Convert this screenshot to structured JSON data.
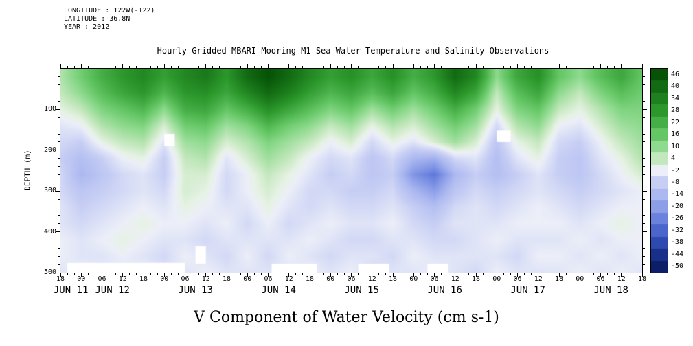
{
  "header": {
    "longitude": "LONGITUDE : 122W(-122)",
    "latitude": "LATITUDE : 36.8N",
    "year": "YEAR : 2012"
  },
  "title": "Hourly Gridded MBARI Mooring M1 Sea Water Temperature and Salinity Observations",
  "caption": "V Component of Water Velocity (cm s-1)",
  "y_axis": {
    "label": "DEPTH (m)",
    "ticks": [
      100,
      200,
      300,
      400,
      500
    ],
    "minor_step": 20,
    "range": [
      0,
      500
    ]
  },
  "x_axis": {
    "start": "JUN 11 18:00",
    "end": "JUN 18 18:00",
    "tick_step_hours": 6,
    "minor_step_hours": 2,
    "tick_labels": [
      "18",
      "00",
      "06",
      "12",
      "18",
      "00",
      "06",
      "12",
      "18",
      "00",
      "06",
      "12",
      "18",
      "00",
      "06",
      "12",
      "18",
      "00",
      "06",
      "12",
      "18",
      "00",
      "06",
      "12",
      "18",
      "00",
      "06",
      "12",
      "18"
    ],
    "day_labels": [
      {
        "h": 3,
        "label": "JUN 11"
      },
      {
        "h": 15,
        "label": "JUN 12"
      },
      {
        "h": 39,
        "label": "JUN 13"
      },
      {
        "h": 63,
        "label": "JUN 14"
      },
      {
        "h": 87,
        "label": "JUN 15"
      },
      {
        "h": 111,
        "label": "JUN 16"
      },
      {
        "h": 135,
        "label": "JUN 17"
      },
      {
        "h": 159,
        "label": "JUN 18"
      }
    ]
  },
  "colorbar": {
    "tick_values": [
      46,
      40,
      34,
      28,
      22,
      16,
      10,
      4,
      -2,
      -8,
      -14,
      -20,
      -26,
      -32,
      -38,
      -44,
      -50
    ],
    "band_step": 6
  },
  "chart_data": {
    "type": "heatmap",
    "value_units": "cm s-1",
    "value_range": [
      -50,
      46
    ],
    "x_unit": "hours since JUN 11 18:00",
    "x_step_hours": 6,
    "x_range_hours": [
      0,
      168
    ],
    "depths": [
      20,
      60,
      100,
      140,
      180,
      220,
      260,
      300,
      340,
      380,
      420,
      460,
      500
    ],
    "values": [
      [
        6,
        14,
        22,
        28,
        32,
        26,
        32,
        36,
        28,
        40,
        46,
        40,
        32,
        26,
        30,
        24,
        30,
        22,
        28,
        40,
        32,
        10,
        24,
        30,
        16,
        10,
        18,
        24,
        16
      ],
      [
        4,
        10,
        18,
        24,
        28,
        20,
        28,
        30,
        24,
        32,
        40,
        34,
        26,
        20,
        24,
        18,
        24,
        16,
        22,
        32,
        24,
        4,
        18,
        24,
        10,
        4,
        12,
        18,
        14
      ],
      [
        0,
        4,
        12,
        16,
        20,
        10,
        22,
        24,
        16,
        22,
        30,
        24,
        18,
        12,
        16,
        8,
        14,
        8,
        14,
        22,
        14,
        0,
        12,
        16,
        4,
        0,
        6,
        12,
        12
      ],
      [
        -4,
        -2,
        6,
        10,
        12,
        2,
        14,
        16,
        8,
        12,
        20,
        14,
        10,
        4,
        8,
        0,
        6,
        2,
        8,
        14,
        8,
        -6,
        6,
        10,
        -2,
        -4,
        2,
        8,
        10
      ],
      [
        -6,
        -8,
        0,
        4,
        6,
        -4,
        8,
        10,
        2,
        6,
        12,
        8,
        4,
        -2,
        2,
        -6,
        0,
        -4,
        2,
        8,
        2,
        -10,
        0,
        4,
        -6,
        -8,
        -2,
        4,
        8
      ],
      [
        -8,
        -12,
        -8,
        -2,
        0,
        -8,
        4,
        6,
        -4,
        2,
        8,
        4,
        -2,
        -6,
        -4,
        -10,
        -6,
        -14,
        -16,
        -6,
        -4,
        -12,
        -4,
        0,
        -8,
        -10,
        -4,
        0,
        6
      ],
      [
        -6,
        -14,
        -10,
        -6,
        -4,
        -8,
        2,
        2,
        -6,
        -2,
        4,
        0,
        -4,
        -8,
        -6,
        -10,
        -8,
        -22,
        -28,
        -14,
        -8,
        -12,
        -8,
        -4,
        -8,
        -10,
        -6,
        -2,
        2
      ],
      [
        -6,
        -10,
        -8,
        -6,
        -4,
        -6,
        2,
        0,
        -6,
        -2,
        2,
        -2,
        -6,
        -6,
        -8,
        -8,
        -6,
        -14,
        -20,
        -10,
        -6,
        -8,
        -6,
        -4,
        -6,
        -8,
        -6,
        -4,
        -2
      ],
      [
        -4,
        -8,
        -6,
        -4,
        -2,
        -4,
        0,
        -2,
        -4,
        -4,
        0,
        -4,
        -6,
        -4,
        -6,
        -6,
        -4,
        -8,
        -12,
        -6,
        -4,
        -6,
        -4,
        -2,
        -4,
        -6,
        -4,
        -2,
        -2
      ],
      [
        -4,
        -6,
        -4,
        -2,
        0,
        -2,
        -2,
        -4,
        -2,
        -6,
        -2,
        -6,
        -4,
        -2,
        -4,
        -4,
        -2,
        -6,
        -8,
        -4,
        -4,
        -4,
        -2,
        -2,
        -2,
        -4,
        -2,
        0,
        -2
      ],
      [
        -2,
        -4,
        -2,
        0,
        -2,
        -4,
        -4,
        -6,
        -4,
        -4,
        -4,
        -4,
        -2,
        -4,
        -6,
        -6,
        -4,
        -4,
        -6,
        -6,
        -4,
        -2,
        -4,
        -4,
        -4,
        -2,
        -4,
        -2,
        -2
      ],
      [
        -2,
        -4,
        -4,
        -2,
        -4,
        -6,
        -2,
        -4,
        -6,
        -2,
        -6,
        -2,
        -4,
        -6,
        -4,
        -4,
        -6,
        -2,
        -4,
        -4,
        -4,
        -4,
        -6,
        -2,
        -2,
        -4,
        -2,
        -4,
        -2
      ],
      [
        -4,
        -2,
        -4,
        -4,
        -2,
        -4,
        -4,
        -2,
        -4,
        -4,
        -4,
        -4,
        -2,
        -4,
        -2,
        -6,
        -4,
        -4,
        -2,
        -4,
        -6,
        -2,
        -4,
        -4,
        -4,
        -2,
        -4,
        -2,
        -4
      ]
    ],
    "missing_patches": [
      {
        "t0": 2,
        "t1": 36,
        "d0": 476,
        "d1": 500
      },
      {
        "t0": 61,
        "t1": 74,
        "d0": 478,
        "d1": 500
      },
      {
        "t0": 86,
        "t1": 95,
        "d0": 478,
        "d1": 500
      },
      {
        "t0": 106,
        "t1": 112,
        "d0": 478,
        "d1": 500
      },
      {
        "t0": 30,
        "t1": 33,
        "d0": 160,
        "d1": 190
      },
      {
        "t0": 39,
        "t1": 42,
        "d0": 436,
        "d1": 478
      },
      {
        "t0": 126,
        "t1": 130,
        "d0": 152,
        "d1": 180
      }
    ],
    "colormap_stops": [
      [
        49,
        [
          0,
          70,
          0
        ]
      ],
      [
        40,
        [
          18,
          106,
          18
        ]
      ],
      [
        34,
        [
          30,
          128,
          30
        ]
      ],
      [
        28,
        [
          44,
          152,
          44
        ]
      ],
      [
        22,
        [
          70,
          174,
          70
        ]
      ],
      [
        16,
        [
          100,
          198,
          100
        ]
      ],
      [
        10,
        [
          142,
          218,
          142
        ]
      ],
      [
        4,
        [
          196,
          232,
          190
        ]
      ],
      [
        0,
        [
          230,
          242,
          228
        ]
      ],
      [
        -2,
        [
          236,
          239,
          248
        ]
      ],
      [
        -8,
        [
          198,
          206,
          244
        ]
      ],
      [
        -14,
        [
          172,
          184,
          240
        ]
      ],
      [
        -20,
        [
          140,
          158,
          232
        ]
      ],
      [
        -26,
        [
          106,
          130,
          222
        ]
      ],
      [
        -32,
        [
          74,
          102,
          204
        ]
      ],
      [
        -38,
        [
          46,
          74,
          176
        ]
      ],
      [
        -44,
        [
          24,
          48,
          138
        ]
      ],
      [
        -50,
        [
          12,
          30,
          104
        ]
      ],
      [
        -53,
        [
          8,
          22,
          84
        ]
      ]
    ]
  }
}
